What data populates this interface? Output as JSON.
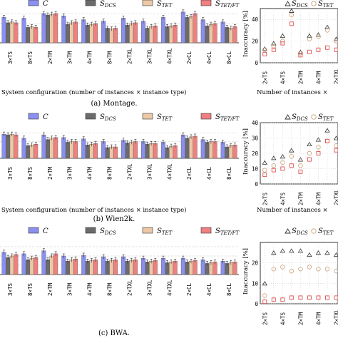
{
  "colors": {
    "C": "#8b8ff0",
    "S_DCS": "#6b6b6b",
    "S_TET": "#ecc8a6",
    "S_TET_FT": "#f07f7f",
    "grid": "#c8c8c8",
    "tri": "#333333",
    "circ": "#c9a27a",
    "sq": "#e05050"
  },
  "legend": {
    "C": {
      "main": "C",
      "sub": ""
    },
    "S_DCS": {
      "main": "S",
      "sub": "DCS"
    },
    "S_TET": {
      "main": "S",
      "sub": "TET"
    },
    "S_TET_FT": {
      "main": "S",
      "sub": "TET/FT"
    }
  },
  "scatter_legend": {
    "tri_label": "S",
    "tri_sub": "DCS",
    "circ_label": "S",
    "circ_sub": "TET"
  },
  "captions": {
    "a": "(a) Montage.",
    "b": "(b) Wien2k.",
    "c": "(c) BWA."
  },
  "bar_xlabel": "System configuration (number of instances × instance type)",
  "scatter_xlabel": "Number of instances ×",
  "scatter_ylabel": "Inaccuracy [%]",
  "chart_data": [
    {
      "type": "bar",
      "panel": "a",
      "categories": [
        "3×TS",
        "8×TS",
        "2×TM",
        "3×TM",
        "4×TM",
        "8×TM",
        "2×TXL",
        "3×TXL",
        "4×TXL",
        "2×CL",
        "4×CL",
        "8×CL"
      ],
      "series": [
        {
          "name": "C",
          "values": [
            33,
            32,
            38,
            35,
            30,
            28,
            32,
            28,
            33,
            40,
            30,
            27
          ]
        },
        {
          "name": "S_DCS",
          "values": [
            26,
            20,
            36,
            24,
            23,
            19,
            23,
            19,
            21,
            33,
            22,
            20
          ]
        },
        {
          "name": "S_TET",
          "values": [
            27,
            21,
            37,
            26,
            24,
            18,
            25,
            21,
            22,
            34,
            24,
            19
          ]
        },
        {
          "name": "S_TET_FT",
          "values": [
            26,
            20,
            38,
            27,
            25,
            19,
            26,
            22,
            23,
            38,
            25,
            21
          ]
        }
      ]
    },
    {
      "type": "scatter",
      "panel": "a",
      "x": [
        "2×TS",
        "3×TS",
        "4×TS",
        "8×TS",
        "2×TM",
        "3×TM",
        "4×TM",
        "8×TM",
        "2×TXL"
      ],
      "ylabel": "Inaccuracy [%]",
      "ylim": [
        0,
        50
      ],
      "yticks": [
        0,
        20,
        40
      ],
      "series": [
        {
          "name": "S_DCS",
          "values": [
            13,
            18,
            25,
            48,
            10,
            25,
            26,
            33,
            22
          ]
        },
        {
          "name": "S_TET",
          "values": [
            12,
            15,
            20,
            44,
            9,
            22,
            24,
            30,
            20
          ]
        },
        {
          "name": "S_TET_FT",
          "values": [
            8,
            12,
            18,
            36,
            7,
            10,
            12,
            14,
            12
          ]
        }
      ]
    },
    {
      "type": "bar",
      "panel": "b",
      "categories": [
        "3×TS",
        "8×TS",
        "2×TM",
        "3×TM",
        "4×TM",
        "8×TM",
        "2×TXL",
        "3×TXL",
        "4×TXL",
        "2×CL",
        "4×CL",
        "8×CL"
      ],
      "series": [
        {
          "name": "C",
          "values": [
            36,
            30,
            35,
            31,
            29,
            25,
            27,
            25,
            24,
            35,
            28,
            24
          ]
        },
        {
          "name": "S_DCS",
          "values": [
            35,
            19,
            28,
            24,
            20,
            16,
            23,
            21,
            16,
            30,
            24,
            17
          ]
        },
        {
          "name": "S_TET",
          "values": [
            36,
            20,
            30,
            25,
            21,
            17,
            24,
            22,
            18,
            32,
            25,
            19
          ]
        },
        {
          "name": "S_TET_FT",
          "values": [
            35,
            21,
            31,
            25,
            22,
            17,
            25,
            22,
            19,
            33,
            25,
            20
          ]
        }
      ]
    },
    {
      "type": "scatter",
      "panel": "b",
      "x": [
        "2×TS",
        "3×TS",
        "4×TS",
        "8×TS",
        "2×TM",
        "3×TM",
        "4×TM",
        "8×TM",
        "2×TXL"
      ],
      "ylabel": "Inaccuracy [%]",
      "ylim": [
        0,
        40
      ],
      "yticks": [
        0,
        10,
        20,
        30,
        40
      ],
      "series": [
        {
          "name": "S_DCS",
          "values": [
            14,
            17,
            18,
            22,
            16,
            26,
            29,
            35,
            30
          ]
        },
        {
          "name": "S_TET",
          "values": [
            9,
            12,
            14,
            18,
            12,
            20,
            24,
            28,
            25
          ]
        },
        {
          "name": "S_TET_FT",
          "values": [
            6,
            9,
            10,
            12,
            8,
            16,
            20,
            28,
            22
          ]
        }
      ]
    },
    {
      "type": "bar",
      "panel": "c",
      "categories": [
        "3×TS",
        "8×TS",
        "2×TM",
        "3×TM",
        "4×TM",
        "8×TM",
        "2×TXL",
        "3×TXL",
        "4×TXL",
        "2×CL",
        "4×CL",
        "8×CL"
      ],
      "series": [
        {
          "name": "C",
          "values": [
            30,
            28,
            32,
            25,
            26,
            24,
            24,
            22,
            22,
            22,
            20,
            18
          ]
        },
        {
          "name": "S_DCS",
          "values": [
            23,
            20,
            20,
            18,
            18,
            18,
            18,
            17,
            16,
            17,
            15,
            15
          ]
        },
        {
          "name": "S_TET",
          "values": [
            25,
            22,
            25,
            20,
            19,
            19,
            19,
            18,
            17,
            18,
            16,
            16
          ]
        },
        {
          "name": "S_TET_FT",
          "values": [
            27,
            23,
            28,
            21,
            20,
            20,
            20,
            19,
            18,
            19,
            17,
            17
          ]
        }
      ]
    },
    {
      "type": "scatter",
      "panel": "c",
      "x": [
        "2×TS",
        "3×TS",
        "4×TS",
        "8×TS",
        "2×TM",
        "3×TM",
        "4×TM",
        "8×TM",
        "2×TXL"
      ],
      "ylabel": "Inaccuracy [%]",
      "ylim": [
        0,
        30
      ],
      "yticks": [
        0,
        10,
        20
      ],
      "series": [
        {
          "name": "S_DCS",
          "values": [
            10,
            25,
            26,
            26,
            26,
            24,
            25,
            25,
            24
          ]
        },
        {
          "name": "S_TET",
          "values": [
            4,
            17,
            18,
            16,
            17,
            18,
            17,
            17,
            16
          ]
        },
        {
          "name": "S_TET_FT",
          "values": [
            1,
            2,
            2,
            3,
            3,
            3,
            3,
            3,
            3
          ]
        }
      ]
    }
  ]
}
